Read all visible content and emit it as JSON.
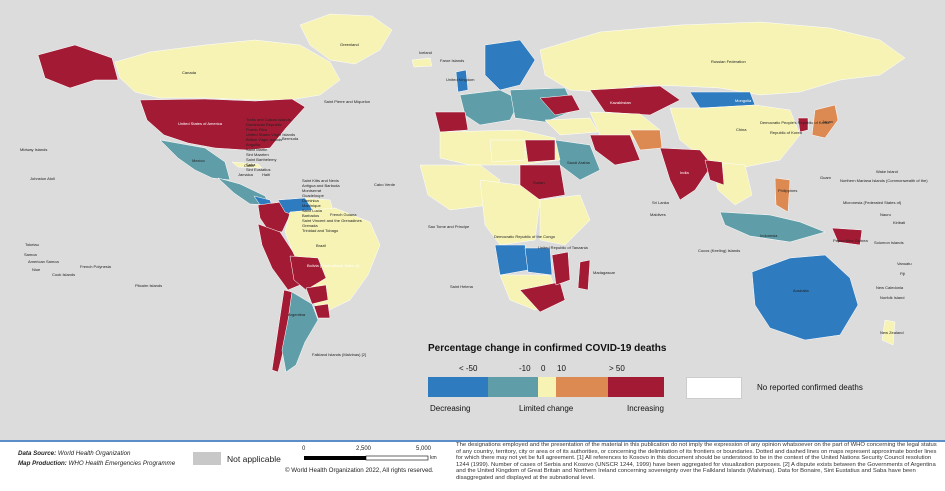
{
  "legend": {
    "title": "Percentage change in confirmed COVID-19 deaths",
    "ticks": [
      "< -50",
      "-10",
      "0",
      "10",
      "> 50"
    ],
    "decreasing": "Decreasing",
    "limited": "Limited change",
    "increasing": "Increasing",
    "no_data": "No reported confirmed deaths",
    "colors": {
      "strong_decrease": "#2f7bbf",
      "decrease": "#5f9ea8",
      "limited": "#f6f3b5",
      "increase": "#dd8a52",
      "strong_increase": "#a31a34",
      "no_data": "#ffffff",
      "not_applicable": "#c8c8c8",
      "ocean": "#dcdcdc"
    }
  },
  "footer": {
    "data_source_label": "Data Source:",
    "data_source": "World Health Organization",
    "map_production_label": "Map Production:",
    "map_production": "WHO Health Emergencies Programme",
    "not_applicable": "Not applicable",
    "scale": [
      "0",
      "2,500",
      "5,000"
    ],
    "scale_unit": "km",
    "copyright": "© World Health Organization 2022, All rights reserved.",
    "disclaimer": "The designations employed and the presentation of the material in this publication do not imply the expression of any opinion whatsoever on the part of WHO concerning the legal status of any country, territory, city or area or of its authorities, or concerning the delimitation of its frontiers or boundaries. Dotted and dashed lines on maps represent approximate border lines for which there may not yet be full agreement. [1] All references to Kosovo in this document should be understood to be in the context of the United Nations Security Council resolution 1244 (1999). Number of cases of Serbia and Kosovo (UNSCR 1244, 1999) have been aggregated for visualization purposes. [2] A dispute exists between the Governments of Argentina and the United Kingdom of Great Britain and Northern Ireland concerning sovereignty over the Falkland Islands (Malvinas). Data for Bonaire, Sint Eustatius and Saba have been disaggregated and displayed at the subnational level."
  },
  "map_labels": {
    "greenland": "Greenland",
    "canada": "Canada",
    "usa": "United States of America",
    "mexico": "Mexico",
    "brazil": "Brazil",
    "argentina": "Argentina",
    "russia": "Russian Federation",
    "china": "China",
    "india": "India",
    "australia": "Australia",
    "mongolia": "Mongolia",
    "kazakhstan": "Kazakhstan",
    "iceland": "Iceland",
    "saudi": "Saudi Arabia",
    "sudan": "Sudan",
    "drc": "Democratic Republic of the Congo",
    "tanzania": "United Republic of Tanzania",
    "japan": "Japan",
    "indonesia": "Indonesia",
    "png": "Papua New Guinea",
    "nz": "New Zealand",
    "falkland": "Falkland Islands (Malvinas) [2]",
    "bolivia": "Bolivia (Plurinational State of)",
    "stpierre": "Saint Pierre and Miquelon",
    "bermuda": "Bermuda",
    "midway": "Midway Islands",
    "johnston": "Johnston Atoll",
    "cuba": "Cuba",
    "haiti": "Haiti",
    "jamaica": "Jamaica",
    "caboverde": "Cabo Verde",
    "frguiana": "French Guiana",
    "stelena": "Saint Helena",
    "madagascar": "Madagascar",
    "srilanka": "Sri Lanka",
    "maldives": "Maldives",
    "philippines": "Philippines",
    "guam": "Guam",
    "wake": "Wake Island",
    "marianas": "Northern Mariana Islands (Commonwealth of the)",
    "micronesia": "Micronesia (Federated States of)",
    "kiribati": "Kiribati",
    "nauru": "Nauru",
    "solomon": "Solomon Islands",
    "vanuatu": "Vanuatu",
    "fiji": "Fiji",
    "newcaledonia": "New Caledonia",
    "norfolk": "Norfolk Island",
    "tokelau": "Tokelau",
    "samoa": "Samoa",
    "amsamoa": "American Samoa",
    "niue": "Niue",
    "cook": "Cook Islands",
    "frpolynesia": "French Polynesia",
    "pitcairn": "Pitcairn Islands",
    "cocos": "Cocos (Keeling) Islands",
    "saotome": "Sao Tome and Principe",
    "korea": "Republic of Korea",
    "dprk": "Democratic People's Republic of Korea",
    "faroe": "Faroe Islands",
    "uk": "United Kingdom",
    "caribbean": "Turks and Caicos Islands\nDominican Republic\nPuerto Rico\nUnited States Virgin Islands\nBritish Virgin Islands\nAnguilla\nSaint Martin\nSint Maarten\nSaint Barthélemy\nSaba\nSint Eustatius",
    "caribbean2": "Saint Kitts and Nevis\nAntigua and Barbuda\nMontserrat\nGuadeloupe\nDominica\nMartinique\nSaint Lucia\nBarbados\nSaint Vincent and the Grenadines\nGrenada\nTrinidad and Tobago"
  }
}
